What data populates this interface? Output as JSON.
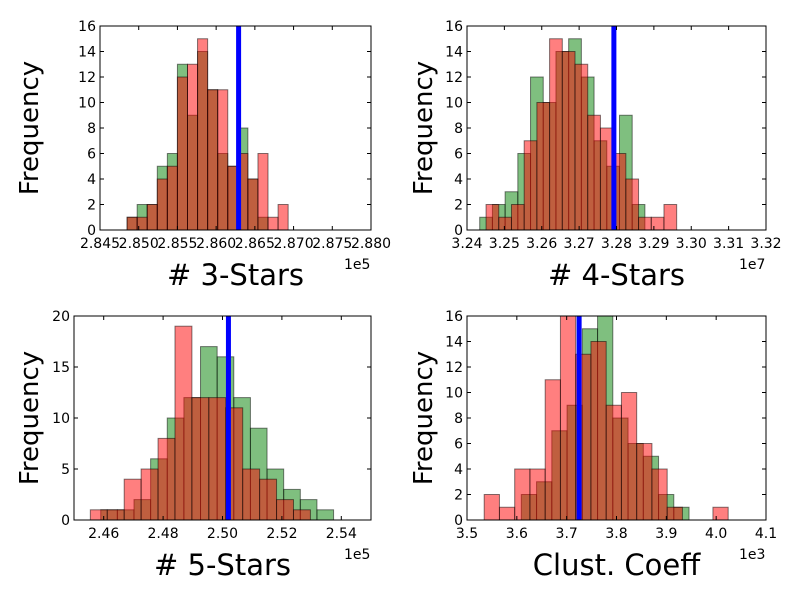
{
  "chart_data": [
    {
      "type": "histogram",
      "xlabel": "# 3-Stars",
      "ylabel": "Frequency",
      "offset_label": "1e5",
      "xlim": [
        2.845,
        2.88
      ],
      "ylim": [
        0,
        16
      ],
      "xticks": [
        "2.845",
        "2.850",
        "2.855",
        "2.860",
        "2.865",
        "2.870",
        "2.875",
        "2.880"
      ],
      "yticks": [
        "0",
        "2",
        "4",
        "6",
        "8",
        "10",
        "12",
        "14",
        "16"
      ],
      "vline": 2.8629,
      "series": [
        {
          "color": "#008000",
          "bin_start": 2.8485,
          "bin_width": 0.0013,
          "counts": [
            1,
            2,
            2,
            5,
            6,
            13,
            9,
            14,
            11,
            6,
            5,
            8,
            4,
            1
          ]
        },
        {
          "color": "#ff0000",
          "bin_start": 2.8485,
          "bin_width": 0.0013,
          "counts": [
            1,
            1,
            2,
            4,
            5,
            12,
            13,
            15,
            11,
            11,
            5,
            6,
            4,
            6,
            1,
            2
          ]
        }
      ]
    },
    {
      "type": "histogram",
      "xlabel": "# 4-Stars",
      "ylabel": "Frequency",
      "offset_label": "1e7",
      "xlim": [
        3.24,
        3.32
      ],
      "ylim": [
        0,
        16
      ],
      "xticks": [
        "3.24",
        "3.25",
        "3.26",
        "3.27",
        "3.28",
        "3.29",
        "3.30",
        "3.31",
        "3.32"
      ],
      "yticks": [
        "0",
        "2",
        "4",
        "6",
        "8",
        "10",
        "12",
        "14",
        "16"
      ],
      "vline": 3.2793,
      "series": [
        {
          "color": "#008000",
          "bin_start": 3.2434,
          "bin_width": 0.0034,
          "counts": [
            1,
            2,
            3,
            6,
            12,
            10,
            14,
            15,
            12,
            7,
            5,
            9,
            2
          ]
        },
        {
          "color": "#ff0000",
          "bin_start": 3.2451,
          "bin_width": 0.0034,
          "counts": [
            2,
            1,
            2,
            7,
            10,
            15,
            14,
            13,
            9,
            8,
            6,
            4,
            1,
            1,
            2
          ]
        }
      ]
    },
    {
      "type": "histogram",
      "xlabel": "# 5-Stars",
      "ylabel": "Frequency",
      "offset_label": "1e5",
      "xlim": [
        2.45,
        2.55
      ],
      "ylim": [
        0,
        20
      ],
      "xticks": [
        "2.46",
        "2.48",
        "2.50",
        "2.52",
        "2.54"
      ],
      "yticks": [
        "0",
        "5",
        "10",
        "15",
        "20"
      ],
      "vline": 2.502,
      "series": [
        {
          "color": "#008000",
          "bin_start": 2.459,
          "bin_width": 0.0056,
          "counts": [
            1,
            1,
            2,
            6,
            10,
            12,
            17,
            16,
            12,
            9,
            5,
            3,
            2,
            1
          ]
        },
        {
          "color": "#ff0000",
          "bin_start": 2.4555,
          "bin_width": 0.0057,
          "counts": [
            1,
            1,
            4,
            5,
            8,
            19,
            12,
            12,
            11,
            5,
            4,
            2,
            1
          ]
        }
      ]
    },
    {
      "type": "histogram",
      "xlabel": "Clust. Coeff",
      "ylabel": "Frequency",
      "offset_label": "1e3",
      "xlim": [
        3.5,
        4.1
      ],
      "ylim": [
        0,
        16
      ],
      "xticks": [
        "3.5",
        "3.6",
        "3.7",
        "3.8",
        "3.9",
        "4.0",
        "4.1"
      ],
      "yticks": [
        "0",
        "2",
        "4",
        "6",
        "8",
        "10",
        "12",
        "14",
        "16"
      ],
      "vline": 3.725,
      "series": [
        {
          "color": "#008000",
          "bin_start": 3.609,
          "bin_width": 0.0306,
          "counts": [
            2,
            3,
            7,
            9,
            15,
            16,
            8,
            6,
            5,
            2,
            1
          ]
        },
        {
          "color": "#ff0000",
          "bin_start": 3.5345,
          "bin_width": 0.0306,
          "counts": [
            2,
            1,
            4,
            4,
            11,
            16,
            13,
            14,
            9,
            10,
            6,
            4,
            1,
            0,
            0,
            1
          ]
        }
      ]
    }
  ]
}
